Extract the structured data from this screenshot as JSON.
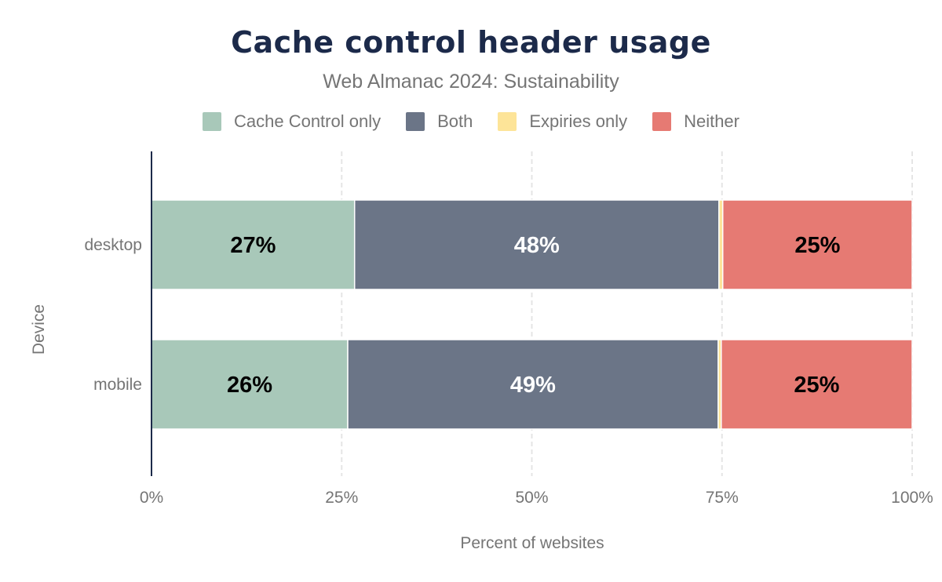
{
  "chart_data": {
    "type": "bar",
    "orientation": "horizontal",
    "stacked": true,
    "title": "Cache control header usage",
    "subtitle": "Web Almanac 2024: Sustainability",
    "xlabel": "Percent of websites",
    "ylabel": "Device",
    "xlim": [
      0,
      100
    ],
    "xticks": [
      "0%",
      "25%",
      "50%",
      "75%",
      "100%"
    ],
    "grid": true,
    "legend_position": "top",
    "categories": [
      "desktop",
      "mobile"
    ],
    "series": [
      {
        "name": "Cache Control only",
        "color": "#a8c8b9",
        "values": [
          26.7,
          25.8
        ],
        "labels": [
          "27%",
          "26%"
        ],
        "label_color": "#000000"
      },
      {
        "name": "Both",
        "color": "#6b7587",
        "values": [
          47.9,
          48.7
        ],
        "labels": [
          "48%",
          "49%"
        ],
        "label_color": "#ffffff"
      },
      {
        "name": "Expiries only",
        "color": "#fde498",
        "values": [
          0.5,
          0.4
        ],
        "labels": [
          "",
          ""
        ],
        "label_color": "#000000"
      },
      {
        "name": "Neither",
        "color": "#e67a73",
        "values": [
          24.9,
          25.1
        ],
        "labels": [
          "25%",
          "25%"
        ],
        "label_color": "#000000"
      }
    ]
  }
}
